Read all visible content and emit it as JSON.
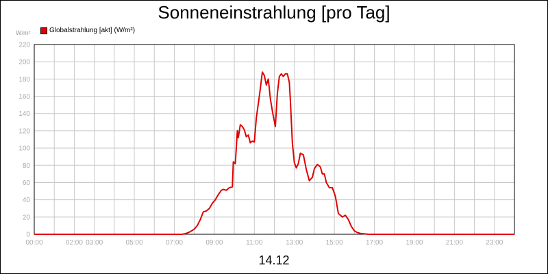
{
  "title": "Sonneneinstrahlung [pro Tag]",
  "legend": {
    "label": "Globalstrahlung [akt] (W/m²)",
    "color": "#e00000"
  },
  "unit_label": "W/m²",
  "date_label": "14.12",
  "chart_data": {
    "type": "line",
    "xlim": [
      0,
      24
    ],
    "ylim": [
      0,
      220
    ],
    "grid": true,
    "legend_position": "top-left",
    "x_tick_labels": [
      {
        "x": 0,
        "label": "00:00"
      },
      {
        "x": 2,
        "label": "02:00"
      },
      {
        "x": 3,
        "label": "03:00"
      },
      {
        "x": 5,
        "label": "05:00"
      },
      {
        "x": 7,
        "label": "07:00"
      },
      {
        "x": 9,
        "label": "09:00"
      },
      {
        "x": 11,
        "label": "11:00"
      },
      {
        "x": 13,
        "label": "13:00"
      },
      {
        "x": 15,
        "label": "15:00"
      },
      {
        "x": 17,
        "label": "17:00"
      },
      {
        "x": 19,
        "label": "19:00"
      },
      {
        "x": 21,
        "label": "21:00"
      },
      {
        "x": 23,
        "label": "23:00"
      }
    ],
    "y_ticks": [
      0,
      20,
      40,
      60,
      80,
      100,
      120,
      140,
      160,
      180,
      200,
      220
    ],
    "x_gridlines": [
      0,
      1,
      2,
      3,
      4,
      5,
      6,
      7,
      8,
      9,
      10,
      11,
      12,
      13,
      14,
      15,
      16,
      17,
      18,
      19,
      20,
      21,
      22,
      23,
      24
    ],
    "series": [
      {
        "name": "Globalstrahlung [akt] (W/m²)",
        "color": "#e00000",
        "x": [
          0,
          7.4,
          7.6,
          7.8,
          8.0,
          8.15,
          8.3,
          8.45,
          8.6,
          8.75,
          8.9,
          9.05,
          9.2,
          9.35,
          9.45,
          9.6,
          9.75,
          9.9,
          9.95,
          10.05,
          10.15,
          10.2,
          10.3,
          10.4,
          10.5,
          10.6,
          10.7,
          10.8,
          10.9,
          11.0,
          11.1,
          11.25,
          11.4,
          11.5,
          11.6,
          11.7,
          11.8,
          11.9,
          11.95,
          12.05,
          12.15,
          12.25,
          12.35,
          12.45,
          12.55,
          12.65,
          12.75,
          12.8,
          12.9,
          13.0,
          13.1,
          13.2,
          13.3,
          13.45,
          13.6,
          13.75,
          13.9,
          14.0,
          14.15,
          14.3,
          14.4,
          14.5,
          14.6,
          14.75,
          14.9,
          15.05,
          15.2,
          15.3,
          15.4,
          15.55,
          15.7,
          15.85,
          16.0,
          16.15,
          16.3,
          16.5,
          16.7,
          17.0,
          24.0
        ],
        "y": [
          0,
          0,
          1,
          3,
          6,
          10,
          17,
          26,
          27,
          30,
          36,
          40,
          46,
          51,
          52,
          51,
          54,
          55,
          84,
          82,
          120,
          112,
          127,
          125,
          121,
          113,
          115,
          106,
          108,
          107,
          135,
          160,
          188,
          184,
          173,
          180,
          157,
          143,
          137,
          125,
          163,
          183,
          186,
          183,
          186,
          186,
          176,
          155,
          106,
          83,
          77,
          82,
          94,
          92,
          75,
          62,
          66,
          76,
          81,
          78,
          70,
          70,
          60,
          54,
          54,
          44,
          24,
          22,
          20,
          22,
          17,
          9,
          4,
          2,
          1,
          0.5,
          0,
          0,
          0
        ]
      }
    ]
  }
}
